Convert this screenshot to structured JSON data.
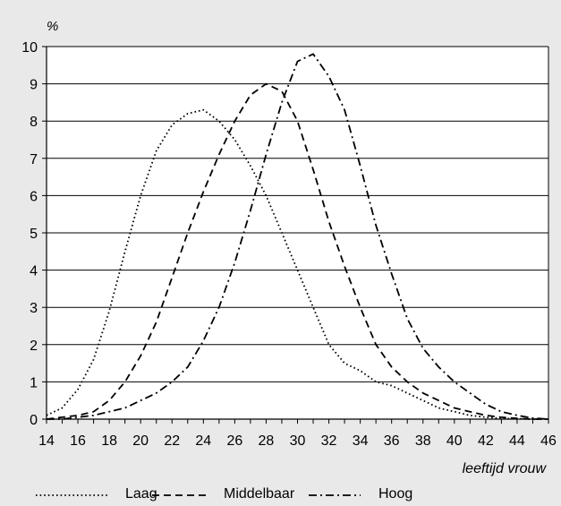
{
  "chart_data": {
    "type": "line",
    "ylabel": "%",
    "xlabel": "leeftijd vrouw",
    "xlim": [
      14,
      46
    ],
    "ylim": [
      0,
      10
    ],
    "x_ticks": [
      14,
      16,
      18,
      20,
      22,
      24,
      26,
      28,
      30,
      32,
      34,
      36,
      38,
      40,
      42,
      44,
      46
    ],
    "y_ticks": [
      0,
      1,
      2,
      3,
      4,
      5,
      6,
      7,
      8,
      9,
      10
    ],
    "grid": "horizontal",
    "legend_position": "bottom",
    "x": [
      14,
      15,
      16,
      17,
      18,
      19,
      20,
      21,
      22,
      23,
      24,
      25,
      26,
      27,
      28,
      29,
      30,
      31,
      32,
      33,
      34,
      35,
      36,
      37,
      38,
      39,
      40,
      41,
      42,
      43,
      44,
      45,
      46
    ],
    "series": [
      {
        "name": "Laag",
        "style": "dotted",
        "values": [
          0.1,
          0.3,
          0.8,
          1.6,
          2.9,
          4.5,
          6.0,
          7.2,
          7.9,
          8.2,
          8.3,
          8.0,
          7.5,
          6.8,
          6.0,
          5.0,
          4.0,
          3.0,
          2.0,
          1.5,
          1.3,
          1.0,
          0.9,
          0.7,
          0.5,
          0.3,
          0.2,
          0.1,
          0.05,
          0.02,
          0.01,
          0.0,
          0.0
        ]
      },
      {
        "name": "Middelbaar",
        "style": "dashed",
        "values": [
          0.0,
          0.05,
          0.1,
          0.2,
          0.5,
          1.0,
          1.7,
          2.6,
          3.8,
          5.0,
          6.1,
          7.1,
          8.0,
          8.7,
          9.0,
          8.8,
          8.0,
          6.7,
          5.3,
          4.1,
          3.0,
          2.0,
          1.4,
          1.0,
          0.7,
          0.5,
          0.3,
          0.2,
          0.1,
          0.05,
          0.02,
          0.0,
          0.0
        ]
      },
      {
        "name": "Hoog",
        "style": "dashdot",
        "values": [
          0.0,
          0.0,
          0.05,
          0.1,
          0.2,
          0.3,
          0.5,
          0.7,
          1.0,
          1.4,
          2.1,
          3.0,
          4.2,
          5.6,
          7.1,
          8.5,
          9.6,
          9.8,
          9.2,
          8.3,
          6.8,
          5.2,
          3.9,
          2.7,
          1.9,
          1.4,
          1.0,
          0.7,
          0.4,
          0.2,
          0.1,
          0.03,
          0.0
        ]
      }
    ]
  }
}
